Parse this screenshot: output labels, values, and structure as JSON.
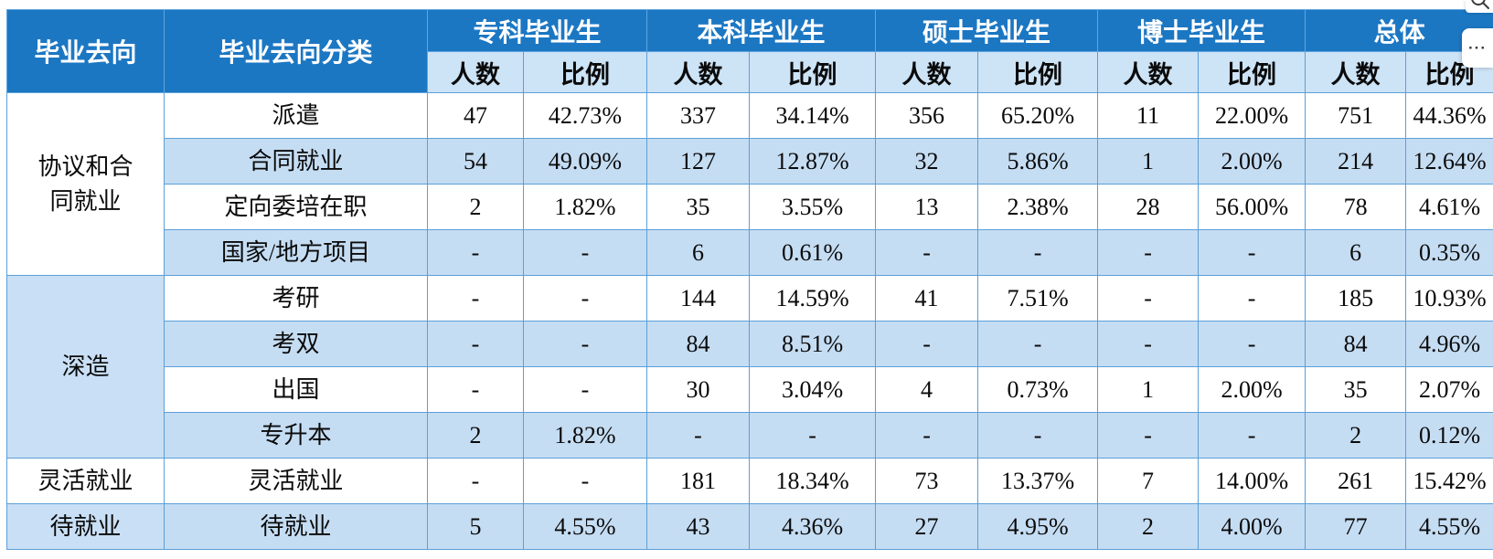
{
  "overlay": {
    "more_label": "···",
    "zoom_icon": "magnifier-icon"
  },
  "style": {
    "header_bg": "#1C77C3",
    "header_text": "#FFFFFF",
    "stripe_bg": "#C5DDF3",
    "subheader_bg": "#CDE3F6",
    "grid_border": "#5B9FD8"
  },
  "chart_data": {
    "type": "table",
    "row_header_1": "毕业去向",
    "row_header_2": "毕业去向分类",
    "column_groups": [
      "专科毕业生",
      "本科毕业生",
      "硕士毕业生",
      "博士毕业生",
      "总体"
    ],
    "subheaders": {
      "count": "人数",
      "ratio": "比例"
    },
    "groups": [
      {
        "name": "协议和合同就业",
        "rows": [
          {
            "category": "派遣",
            "values": [
              "47",
              "42.73%",
              "337",
              "34.14%",
              "356",
              "65.20%",
              "11",
              "22.00%",
              "751",
              "44.36%"
            ]
          },
          {
            "category": "合同就业",
            "values": [
              "54",
              "49.09%",
              "127",
              "12.87%",
              "32",
              "5.86%",
              "1",
              "2.00%",
              "214",
              "12.64%"
            ]
          },
          {
            "category": "定向委培在职",
            "values": [
              "2",
              "1.82%",
              "35",
              "3.55%",
              "13",
              "2.38%",
              "28",
              "56.00%",
              "78",
              "4.61%"
            ]
          },
          {
            "category": "国家/地方项目",
            "values": [
              "-",
              "-",
              "6",
              "0.61%",
              "-",
              "-",
              "-",
              "-",
              "6",
              "0.35%"
            ]
          }
        ]
      },
      {
        "name": "深造",
        "rows": [
          {
            "category": "考研",
            "values": [
              "-",
              "-",
              "144",
              "14.59%",
              "41",
              "7.51%",
              "-",
              "-",
              "185",
              "10.93%"
            ]
          },
          {
            "category": "考双",
            "values": [
              "-",
              "-",
              "84",
              "8.51%",
              "-",
              "-",
              "-",
              "-",
              "84",
              "4.96%"
            ]
          },
          {
            "category": "出国",
            "values": [
              "-",
              "-",
              "30",
              "3.04%",
              "4",
              "0.73%",
              "1",
              "2.00%",
              "35",
              "2.07%"
            ]
          },
          {
            "category": "专升本",
            "values": [
              "2",
              "1.82%",
              "-",
              "-",
              "-",
              "-",
              "-",
              "-",
              "2",
              "0.12%"
            ]
          }
        ]
      },
      {
        "name": "灵活就业",
        "rows": [
          {
            "category": "灵活就业",
            "values": [
              "-",
              "-",
              "181",
              "18.34%",
              "73",
              "13.37%",
              "7",
              "14.00%",
              "261",
              "15.42%"
            ]
          }
        ]
      },
      {
        "name": "待就业",
        "rows": [
          {
            "category": "待就业",
            "values": [
              "5",
              "4.55%",
              "43",
              "4.36%",
              "27",
              "4.95%",
              "2",
              "4.00%",
              "77",
              "4.55%"
            ]
          }
        ]
      }
    ]
  }
}
